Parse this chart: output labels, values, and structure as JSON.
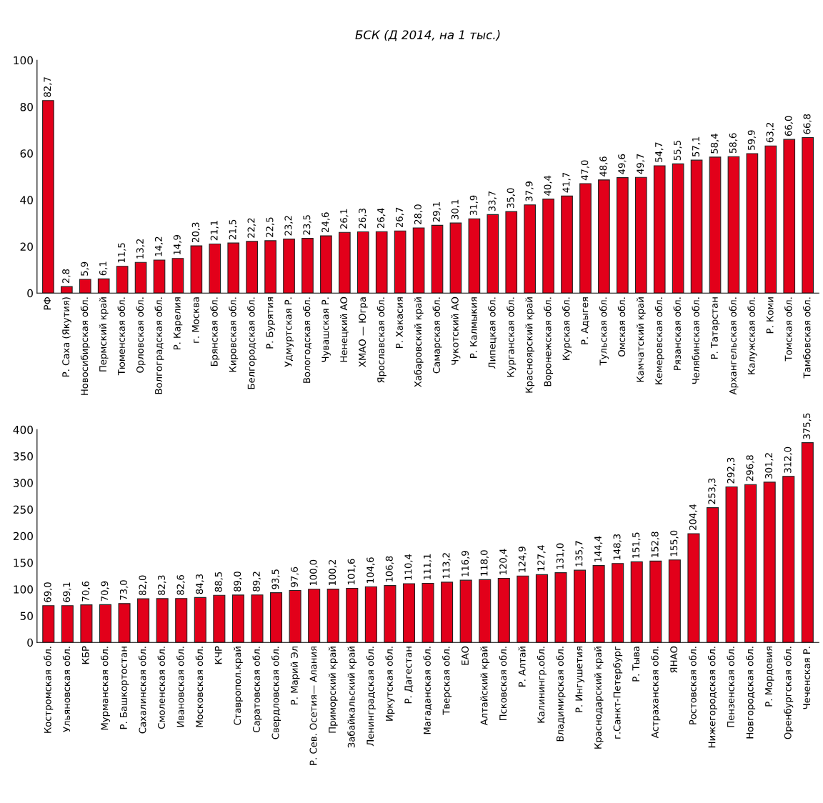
{
  "chart_data": [
    {
      "type": "bar",
      "title": "БСК (Д 2014, на 1 тыс.)",
      "categories": [
        "РФ",
        "Р. Саха (Якутия)",
        "Новосибирская обл.",
        "Пермский край",
        "Тюменская обл.",
        "Орловская обл.",
        "Волгоградская обл.",
        "Р. Карелия",
        "г. Москва",
        "Брянская обл.",
        "Кировская обл.",
        "Белгородская обл.",
        "Р. Бурятия",
        "Удмуртская Р.",
        "Вологодская обл.",
        "Чувашская Р.",
        "Ненецкий АО",
        "ХМАО — Югра",
        "Ярославская обл.",
        "Р. Хакасия",
        "Хабаровский край",
        "Самарская обл.",
        "Чукотский АО",
        "Р. Калмыкия",
        "Липецкая обл.",
        "Курганская обл.",
        "Красноярский край",
        "Воронежская обл.",
        "Курская обл.",
        "Р. Адыгея",
        "Тульская обл.",
        "Омская обл.",
        "Камчатский край",
        "Кемеровская обл.",
        "Рязанская обл.",
        "Челябинская обл.",
        "Р. Татарстан",
        "Архангельская обл.",
        "Калужская обл.",
        "Р. Коми",
        "Томская обл.",
        "Тамбовская обл."
      ],
      "values": [
        82.7,
        2.8,
        5.9,
        6.1,
        11.5,
        13.2,
        14.2,
        14.9,
        20.3,
        21.1,
        21.5,
        22.2,
        22.5,
        23.2,
        23.5,
        24.6,
        26.1,
        26.3,
        26.4,
        26.7,
        28.0,
        29.1,
        30.1,
        31.9,
        33.7,
        35.0,
        37.9,
        40.4,
        41.7,
        47.0,
        48.6,
        49.6,
        49.7,
        54.7,
        55.5,
        57.1,
        58.4,
        58.6,
        59.9,
        63.2,
        66.0,
        66.8
      ],
      "value_labels": [
        "82,7",
        "2,8",
        "5,9",
        "6,1",
        "11,5",
        "13,2",
        "14,2",
        "14,9",
        "20,3",
        "21,1",
        "21,5",
        "22,2",
        "22,5",
        "23,2",
        "23,5",
        "24,6",
        "26,1",
        "26,3",
        "26,4",
        "26,7",
        "28,0",
        "29,1",
        "30,1",
        "31,9",
        "33,7",
        "35,0",
        "37,9",
        "40,4",
        "41,7",
        "47,0",
        "48,6",
        "49,6",
        "49,7",
        "54,7",
        "55,5",
        "57,1",
        "58,4",
        "58,6",
        "59,9",
        "63,2",
        "66,0",
        "66,8"
      ],
      "color": "#e2001a",
      "ylim": [
        0,
        100
      ],
      "yticks": [
        0,
        20,
        40,
        60,
        80,
        100
      ],
      "grid": false,
      "legend": false
    },
    {
      "type": "bar",
      "categories": [
        "Костромская обл.",
        "Ульяновская обл.",
        "КБР",
        "Мурманская обл.",
        "Р. Башкортостан",
        "Сахалинская обл.",
        "Смоленская обл.",
        "Ивановская обл.",
        "Московская обл.",
        "КЧР",
        "Ставропол.край",
        "Саратовская обл.",
        "Свердловская обл.",
        "Р. Марий Эл",
        "Р. Сев. Осетия— Алания",
        "Приморский край",
        "Забайкальский край",
        "Ленинградская обл.",
        "Иркутская обл.",
        "Р. Дагестан",
        "Магаданская обл.",
        "Тверская обл.",
        "ЕАО",
        "Алтайский край",
        "Псковская обл.",
        "Р. Алтай",
        "Калинингр.обл.",
        "Владимирская обл.",
        "Р. Ингушетия",
        "Краснодарский край",
        "г.Санкт-Петербург",
        "Р. Тыва",
        "Астраханская обл.",
        "ЯНАО",
        "Ростовская обл.",
        "Нижегородская обл.",
        "Пензенская обл.",
        "Новгородская обл.",
        "Р. Мордовия",
        "Оренбургская обл.",
        "Чеченская Р."
      ],
      "values": [
        69.0,
        69.1,
        70.6,
        70.9,
        73.0,
        82.0,
        82.3,
        82.6,
        84.3,
        88.5,
        89.0,
        89.2,
        93.5,
        97.6,
        100.0,
        100.2,
        101.6,
        104.6,
        106.8,
        110.4,
        111.1,
        113.2,
        116.9,
        118.0,
        120.4,
        124.9,
        127.4,
        131.0,
        135.7,
        144.4,
        148.3,
        151.5,
        152.8,
        155.0,
        204.4,
        253.3,
        292.3,
        296.8,
        301.2,
        312.0,
        375.5
      ],
      "value_labels": [
        "69,0",
        "69,1",
        "70,6",
        "70,9",
        "73,0",
        "82,0",
        "82,3",
        "82,6",
        "84,3",
        "88,5",
        "89,0",
        "89,2",
        "93,5",
        "97,6",
        "100,0",
        "100,2",
        "101,6",
        "104,6",
        "106,8",
        "110,4",
        "111,1",
        "113,2",
        "116,9",
        "118,0",
        "120,4",
        "124,9",
        "127,4",
        "131,0",
        "135,7",
        "144,4",
        "148,3",
        "151,5",
        "152,8",
        "155,0",
        "204,4",
        "253,3",
        "292,3",
        "296,8",
        "301,2",
        "312,0",
        "375,5"
      ],
      "color": "#e2001a",
      "ylim": [
        0,
        400
      ],
      "yticks": [
        0,
        50,
        100,
        150,
        200,
        250,
        300,
        350,
        400
      ],
      "grid": false,
      "legend": false
    }
  ]
}
